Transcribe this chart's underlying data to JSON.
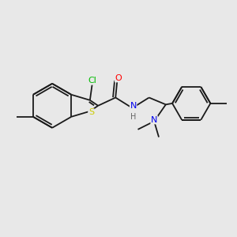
{
  "background_color": "#e8e8e8",
  "bond_color": "#1a1a1a",
  "bond_width": 1.3,
  "atom_colors": {
    "S": "#cccc00",
    "Cl": "#00bb00",
    "O": "#ff0000",
    "N": "#0000ee",
    "H": "#666666",
    "C": "#1a1a1a"
  },
  "font_size": 7.5,
  "figsize": [
    3.0,
    3.0
  ],
  "dpi": 100
}
